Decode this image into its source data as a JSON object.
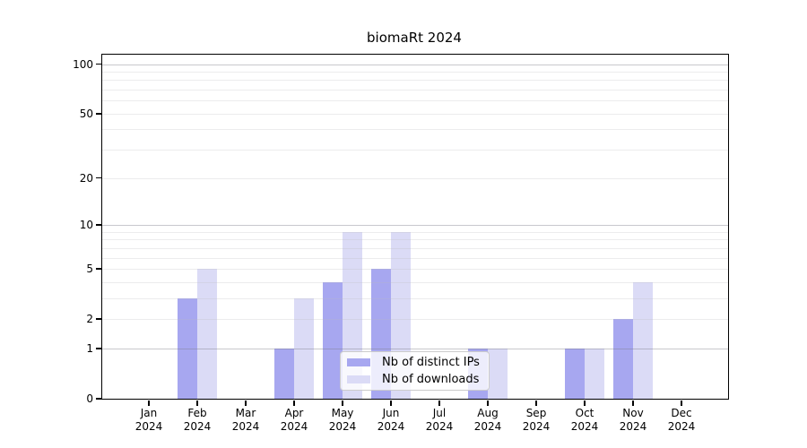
{
  "title": "biomaRt 2024",
  "colors": {
    "ips_bar": "#a7a7f0",
    "downloads_bar": "#dbdbf6",
    "grid_major": "#c8c8cc",
    "grid_minor": "#ececec",
    "axis": "#000000",
    "legend_border": "#cccccc"
  },
  "legend": {
    "items": [
      {
        "label": "Nb of distinct IPs",
        "color_key": "ips_bar"
      },
      {
        "label": "Nb of downloads",
        "color_key": "downloads_bar"
      }
    ]
  },
  "chart_data": {
    "type": "bar",
    "title": "biomaRt 2024",
    "xlabel": "",
    "ylabel": "",
    "categories": [
      "Jan",
      "Feb",
      "Mar",
      "Apr",
      "May",
      "Jun",
      "Jul",
      "Aug",
      "Sep",
      "Oct",
      "Nov",
      "Dec"
    ],
    "category_year": "2024",
    "series": [
      {
        "name": "Nb of distinct IPs",
        "color": "#a7a7f0",
        "values": [
          0,
          3,
          0,
          1,
          4,
          5,
          0,
          1,
          0,
          1,
          2,
          0
        ]
      },
      {
        "name": "Nb of downloads",
        "color": "#dbdbf6",
        "values": [
          0,
          5,
          0,
          3,
          9,
          9,
          0,
          1,
          0,
          1,
          4,
          0
        ]
      }
    ],
    "yscale": "log1p",
    "ylim": [
      0,
      114
    ],
    "yticks": [
      0,
      1,
      2,
      5,
      10,
      20,
      50,
      100
    ],
    "grid": {
      "major_lines": [
        1,
        10,
        100
      ],
      "minor_lines": [
        2,
        3,
        4,
        5,
        6,
        7,
        8,
        9,
        20,
        30,
        40,
        50,
        60,
        70,
        80,
        90
      ]
    },
    "legend_position": "inside lower-center",
    "grid_on": true
  }
}
